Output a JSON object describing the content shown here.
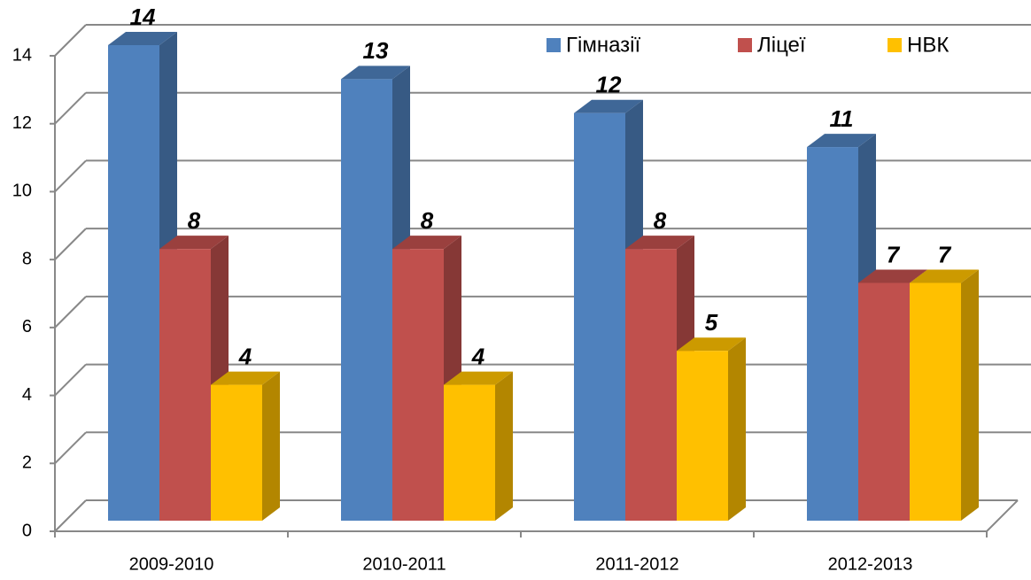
{
  "chart_data": {
    "type": "bar3d",
    "categories": [
      "2009-2010",
      "2010-2011",
      "2011-2012",
      "2012-2013"
    ],
    "series": [
      {
        "name": "Гімназії",
        "color": "#4f81bd",
        "values": [
          14,
          13,
          12,
          11
        ]
      },
      {
        "name": "Ліцеї",
        "color": "#c0504d",
        "values": [
          8,
          8,
          8,
          7
        ]
      },
      {
        "name": "НВК",
        "color": "#ffc000",
        "values": [
          4,
          4,
          5,
          7
        ]
      }
    ],
    "ylim": [
      0,
      14
    ],
    "yticks": [
      0,
      2,
      4,
      6,
      8,
      10,
      12,
      14
    ],
    "grid": true,
    "legend": "top-right"
  }
}
